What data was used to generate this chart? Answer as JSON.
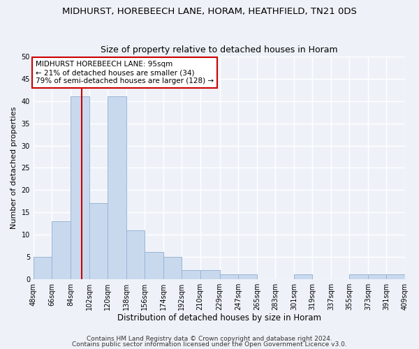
{
  "title": "MIDHURST, HOREBEECH LANE, HORAM, HEATHFIELD, TN21 0DS",
  "subtitle": "Size of property relative to detached houses in Horam",
  "xlabel": "Distribution of detached houses by size in Horam",
  "ylabel": "Number of detached properties",
  "bar_color": "#c8d9ee",
  "bar_edge_color": "#9ab4d4",
  "bins": [
    48,
    66,
    84,
    102,
    120,
    138,
    156,
    174,
    192,
    210,
    229,
    247,
    265,
    283,
    301,
    319,
    337,
    355,
    373,
    391,
    409
  ],
  "bin_labels": [
    "48sqm",
    "66sqm",
    "84sqm",
    "102sqm",
    "120sqm",
    "138sqm",
    "156sqm",
    "174sqm",
    "192sqm",
    "210sqm",
    "229sqm",
    "247sqm",
    "265sqm",
    "283sqm",
    "301sqm",
    "319sqm",
    "337sqm",
    "355sqm",
    "373sqm",
    "391sqm",
    "409sqm"
  ],
  "counts": [
    5,
    13,
    41,
    17,
    41,
    11,
    6,
    5,
    2,
    2,
    1,
    1,
    0,
    0,
    1,
    0,
    0,
    1,
    1,
    1
  ],
  "vline_x": 95,
  "vline_color": "#cc0000",
  "annotation_text": "MIDHURST HOREBEECH LANE: 95sqm\n← 21% of detached houses are smaller (34)\n79% of semi-detached houses are larger (128) →",
  "annotation_box_color": "#ffffff",
  "annotation_box_edge": "#cc0000",
  "ylim": [
    0,
    50
  ],
  "yticks": [
    0,
    5,
    10,
    15,
    20,
    25,
    30,
    35,
    40,
    45,
    50
  ],
  "footer1": "Contains HM Land Registry data © Crown copyright and database right 2024.",
  "footer2": "Contains public sector information licensed under the Open Government Licence v3.0.",
  "background_color": "#eef2f8",
  "grid_color": "#ffffff",
  "title_fontsize": 9.5,
  "subtitle_fontsize": 9,
  "xlabel_fontsize": 8.5,
  "ylabel_fontsize": 8,
  "tick_fontsize": 7,
  "annotation_fontsize": 7.5,
  "footer_fontsize": 6.5
}
